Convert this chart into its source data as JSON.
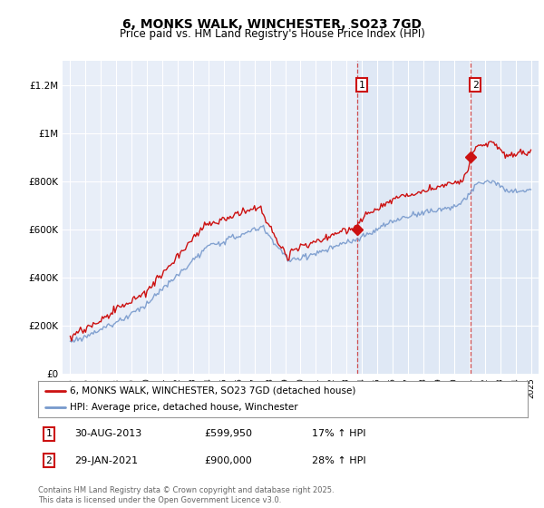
{
  "title": "6, MONKS WALK, WINCHESTER, SO23 7GD",
  "subtitle": "Price paid vs. HM Land Registry's House Price Index (HPI)",
  "background_color": "#ffffff",
  "plot_bg_color": "#e8eef8",
  "grid_color": "#cccccc",
  "hpi_line_color": "#7799cc",
  "price_line_color": "#cc1111",
  "purchase1_date_x": 2013.67,
  "purchase2_date_x": 2021.08,
  "purchase1_price": 599950,
  "purchase2_price": 900000,
  "ylim_min": 0,
  "ylim_max": 1300000,
  "xlim_min": 1994.5,
  "xlim_max": 2025.5,
  "yticks": [
    0,
    200000,
    400000,
    600000,
    800000,
    1000000,
    1200000
  ],
  "ytick_labels": [
    "£0",
    "£200K",
    "£400K",
    "£600K",
    "£800K",
    "£1M",
    "£1.2M"
  ],
  "xticks": [
    1995,
    1996,
    1997,
    1998,
    1999,
    2000,
    2001,
    2002,
    2003,
    2004,
    2005,
    2006,
    2007,
    2008,
    2009,
    2010,
    2011,
    2012,
    2013,
    2014,
    2015,
    2016,
    2017,
    2018,
    2019,
    2020,
    2021,
    2022,
    2023,
    2024,
    2025
  ],
  "legend_label_red": "6, MONKS WALK, WINCHESTER, SO23 7GD (detached house)",
  "legend_label_blue": "HPI: Average price, detached house, Winchester",
  "footer_text": "Contains HM Land Registry data © Crown copyright and database right 2025.\nThis data is licensed under the Open Government Licence v3.0.",
  "annotation1_label": "1",
  "annotation1_date": "30-AUG-2013",
  "annotation1_price": "£599,950",
  "annotation1_hpi": "17% ↑ HPI",
  "annotation2_label": "2",
  "annotation2_date": "29-JAN-2021",
  "annotation2_price": "£900,000",
  "annotation2_hpi": "28% ↑ HPI"
}
